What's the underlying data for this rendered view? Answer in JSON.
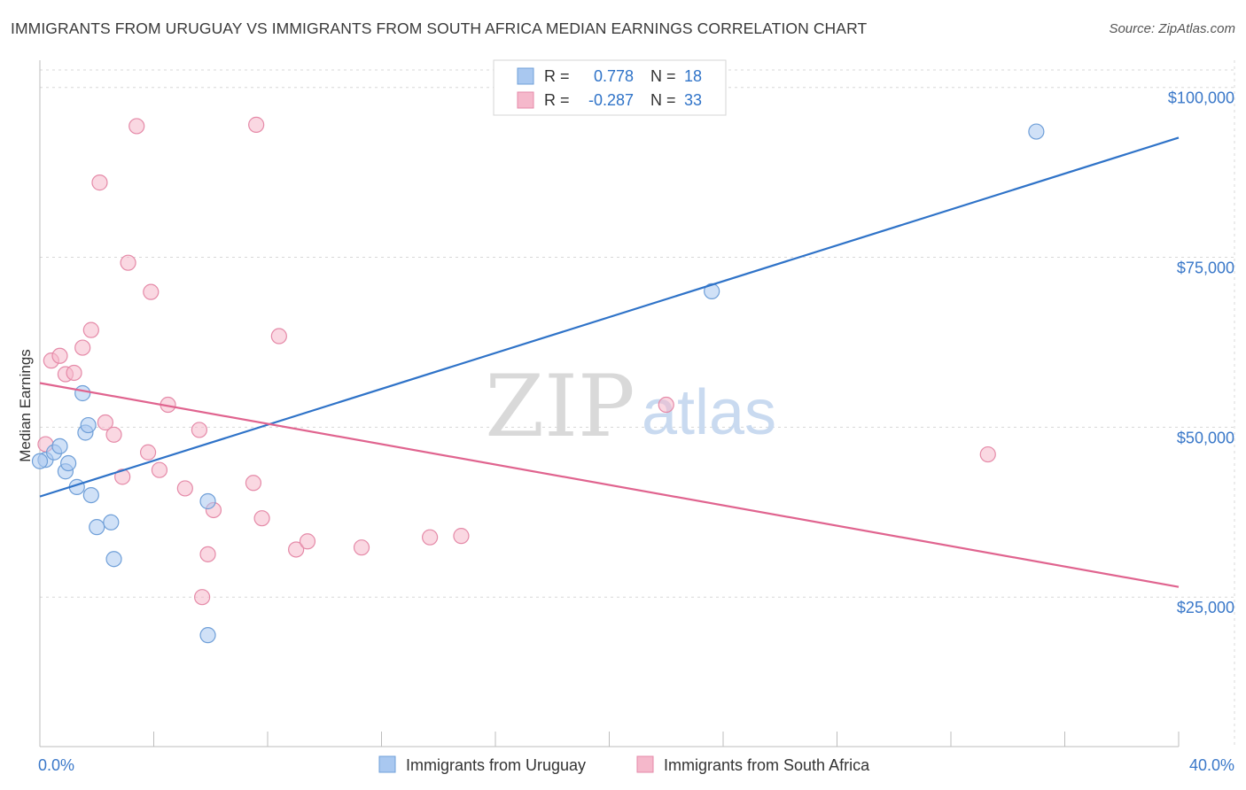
{
  "header": {
    "title": "IMMIGRANTS FROM URUGUAY VS IMMIGRANTS FROM SOUTH AFRICA MEDIAN EARNINGS CORRELATION CHART",
    "source": "Source: ZipAtlas.com"
  },
  "watermark": {
    "zip": "ZIP",
    "atlas": "atlas"
  },
  "colors": {
    "blue_fill": "#a9c8f0",
    "blue_stroke": "#6f9fd8",
    "blue_line": "#2f73c8",
    "pink_fill": "#f5b8cb",
    "pink_stroke": "#e58aa8",
    "pink_line": "#e0648f",
    "axis_text": "#3a78c9",
    "grid": "#d8d8d8"
  },
  "chart_data": {
    "type": "scatter",
    "title": "IMMIGRANTS FROM URUGUAY VS IMMIGRANTS FROM SOUTH AFRICA MEDIAN EARNINGS CORRELATION CHART",
    "ylabel": "Median Earnings",
    "xlabel": "",
    "xlim": [
      0,
      40
    ],
    "ylim": [
      3000,
      104000
    ],
    "x_tick_labels": [
      "0.0%",
      "40.0%"
    ],
    "y_ticks": [
      {
        "value": 25000,
        "label": "$25,000"
      },
      {
        "value": 50000,
        "label": "$50,000"
      },
      {
        "value": 75000,
        "label": "$75,000"
      },
      {
        "value": 100000,
        "label": "$100,000"
      }
    ],
    "grid": true,
    "legend_position": "top-center",
    "stats": [
      {
        "r_label": "R =",
        "r_value": "0.778",
        "n_label": "N =",
        "n_value": "18"
      },
      {
        "r_label": "R =",
        "r_value": "-0.287",
        "n_label": "N =",
        "n_value": "33"
      }
    ],
    "series": [
      {
        "name": "Immigrants from Uruguay",
        "color": "blue",
        "trend": {
          "x": [
            0,
            40
          ],
          "y": [
            39800,
            92600
          ]
        },
        "points": [
          [
            0.2,
            45200
          ],
          [
            0.5,
            46300
          ],
          [
            0.7,
            47200
          ],
          [
            0.9,
            43500
          ],
          [
            1.0,
            44700
          ],
          [
            1.3,
            41200
          ],
          [
            1.5,
            55000
          ],
          [
            1.6,
            49200
          ],
          [
            1.7,
            50300
          ],
          [
            1.8,
            40000
          ],
          [
            2.0,
            35300
          ],
          [
            2.5,
            36000
          ],
          [
            2.6,
            30600
          ],
          [
            5.9,
            39100
          ],
          [
            5.9,
            19400
          ],
          [
            23.6,
            70000
          ],
          [
            35.0,
            93500
          ],
          [
            0.0,
            45000
          ]
        ]
      },
      {
        "name": "Immigrants from South Africa",
        "color": "pink",
        "trend": {
          "x": [
            0,
            40
          ],
          "y": [
            56500,
            26500
          ]
        },
        "points": [
          [
            0.2,
            47500
          ],
          [
            0.4,
            59800
          ],
          [
            0.7,
            60500
          ],
          [
            0.9,
            57800
          ],
          [
            1.2,
            58000
          ],
          [
            1.5,
            61700
          ],
          [
            1.8,
            64300
          ],
          [
            2.1,
            86000
          ],
          [
            2.3,
            50700
          ],
          [
            2.6,
            48900
          ],
          [
            2.9,
            42700
          ],
          [
            3.1,
            74200
          ],
          [
            3.4,
            94300
          ],
          [
            3.8,
            46300
          ],
          [
            3.9,
            69900
          ],
          [
            4.2,
            43700
          ],
          [
            4.5,
            53300
          ],
          [
            5.1,
            41000
          ],
          [
            5.6,
            49600
          ],
          [
            6.1,
            37800
          ],
          [
            5.9,
            31300
          ],
          [
            5.7,
            25000
          ],
          [
            7.5,
            41800
          ],
          [
            7.6,
            94500
          ],
          [
            7.8,
            36600
          ],
          [
            8.4,
            63400
          ],
          [
            9.0,
            32000
          ],
          [
            9.4,
            33200
          ],
          [
            11.3,
            32300
          ],
          [
            13.7,
            33800
          ],
          [
            14.8,
            34000
          ],
          [
            22.0,
            53300
          ],
          [
            33.3,
            46000
          ]
        ]
      }
    ]
  }
}
